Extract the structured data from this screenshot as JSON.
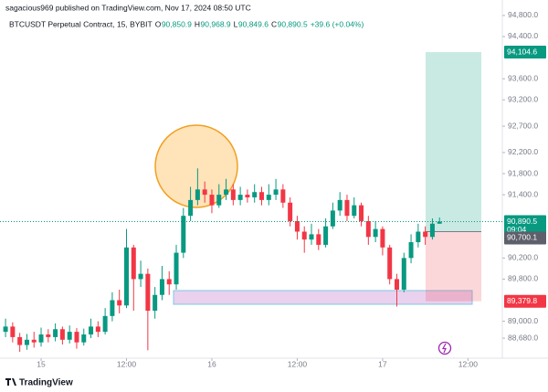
{
  "chart_data": {
    "type": "candlestick",
    "header": "sagacious969 published on TradingView.com, Nov 17, 2024 08:50 UTC",
    "title": "BTCUSDT Perpetual Contract, 15, BYBIT",
    "legend": [
      {
        "label": "O",
        "value": "90,850.9"
      },
      {
        "label": "H",
        "value": "90,968.9"
      },
      {
        "label": "L",
        "value": "90,849.6"
      },
      {
        "label": "C",
        "value": "90,890.5"
      }
    ],
    "change": "+39.6 (+0.04%)",
    "up_color": "#089981",
    "down_color": "#f23645",
    "x": [
      -5,
      -4,
      -3,
      -2,
      -1,
      0,
      1,
      2,
      3,
      4,
      5,
      6,
      7,
      8,
      9,
      10,
      11,
      12,
      13,
      14,
      15,
      16,
      17,
      18,
      19,
      20,
      21,
      22,
      23,
      24,
      25,
      26,
      27,
      28,
      29,
      30,
      31,
      32,
      33,
      34,
      35,
      36,
      37,
      38,
      39,
      40,
      41,
      42,
      43,
      44,
      45,
      46,
      47,
      48,
      49,
      50,
      51,
      52,
      53,
      54,
      55,
      56
    ],
    "open": [
      88800,
      88900,
      88700,
      88550,
      88650,
      88600,
      88750,
      88700,
      88850,
      88650,
      88800,
      88600,
      88750,
      88900,
      88800,
      89100,
      89400,
      89300,
      90400,
      89800,
      89900,
      89200,
      89500,
      89800,
      89700,
      90300,
      91000,
      91300,
      91500,
      91400,
      91200,
      91400,
      91500,
      91300,
      91400,
      91350,
      91450,
      91300,
      91400,
      91500,
      91250,
      90900,
      90700,
      90550,
      90650,
      90450,
      90800,
      91100,
      91300,
      91000,
      91200,
      90900,
      90600,
      90750,
      90400,
      89800,
      89600,
      90200,
      90500,
      90700,
      90600,
      90850.9
    ],
    "high": [
      89050,
      88980,
      88780,
      88760,
      88800,
      88880,
      88850,
      88960,
      88900,
      88920,
      88870,
      88860,
      89050,
      89000,
      89250,
      89550,
      89600,
      90750,
      90450,
      90150,
      90000,
      89650,
      90050,
      89950,
      90450,
      91150,
      91550,
      91900,
      91650,
      91500,
      91600,
      91700,
      91600,
      91550,
      91500,
      91600,
      91550,
      91600,
      91700,
      91600,
      91350,
      91000,
      90800,
      90850,
      90750,
      90950,
      91250,
      91450,
      91400,
      91350,
      91250,
      91000,
      90900,
      90800,
      90450,
      89900,
      90300,
      90650,
      90850,
      90800,
      90950,
      90968.9
    ],
    "low": [
      88700,
      88600,
      88420,
      88460,
      88500,
      88520,
      88600,
      88620,
      88560,
      88580,
      88480,
      88540,
      88680,
      88700,
      88750,
      89000,
      89150,
      89250,
      89200,
      89650,
      88450,
      89050,
      89400,
      89500,
      89600,
      90200,
      90900,
      91200,
      91250,
      91050,
      91150,
      91300,
      91200,
      91200,
      91250,
      91250,
      91200,
      91200,
      91300,
      91150,
      90800,
      90550,
      90300,
      90450,
      90350,
      90400,
      90750,
      91000,
      90900,
      90950,
      90800,
      90450,
      90500,
      90250,
      89700,
      89280,
      89550,
      90100,
      90400,
      90450,
      90550,
      90849.6
    ],
    "close": [
      88900,
      88700,
      88550,
      88650,
      88600,
      88750,
      88700,
      88850,
      88650,
      88800,
      88600,
      88750,
      88900,
      88800,
      89100,
      89400,
      89300,
      90400,
      89800,
      89900,
      89200,
      89500,
      89800,
      89700,
      90300,
      91000,
      91300,
      91500,
      91400,
      91200,
      91400,
      91500,
      91300,
      91400,
      91350,
      91450,
      91300,
      91400,
      91500,
      91250,
      90900,
      90700,
      90550,
      90650,
      90450,
      90800,
      91100,
      91300,
      91000,
      91200,
      90900,
      90600,
      90750,
      90400,
      89800,
      89600,
      90200,
      90500,
      90700,
      90600,
      90850.9,
      90890.5
    ],
    "xlim": [
      -5.78,
      64.83
    ],
    "xticks": [
      {
        "value": 0,
        "label": "15"
      },
      {
        "value": 12,
        "label": "12:00"
      },
      {
        "value": 24,
        "label": "16"
      },
      {
        "value": 36,
        "label": "12:00"
      },
      {
        "value": 48,
        "label": "17"
      },
      {
        "value": 60,
        "label": "12:00"
      }
    ],
    "ylim": [
      88300,
      95093
    ],
    "yticks": [
      {
        "value": 94800,
        "label": "94,800.0"
      },
      {
        "value": 94400,
        "label": "94,400.0"
      },
      {
        "value": 93600,
        "label": "93,600.0"
      },
      {
        "value": 93200,
        "label": "93,200.0"
      },
      {
        "value": 92700,
        "label": "92,700.0"
      },
      {
        "value": 92200,
        "label": "92,200.0"
      },
      {
        "value": 91800,
        "label": "91,800.0"
      },
      {
        "value": 91400,
        "label": "91,400.0"
      },
      {
        "value": 90200,
        "label": "90,200.0"
      },
      {
        "value": 89800,
        "label": "89,800.0"
      },
      {
        "value": 89000,
        "label": "89,000.0"
      },
      {
        "value": 88680,
        "label": "88,680.0"
      }
    ],
    "grid": false,
    "last_price": {
      "value": 90890.5,
      "label": "90,890.5",
      "countdown": "09:04"
    },
    "position": {
      "target": {
        "value": 94104.6,
        "label": "94,104.6"
      },
      "entry": {
        "value": 90700.1,
        "label": "90,700.1"
      },
      "stop": {
        "value": 89379.8,
        "label": "89,379.8"
      }
    },
    "footer": "TradingView"
  }
}
